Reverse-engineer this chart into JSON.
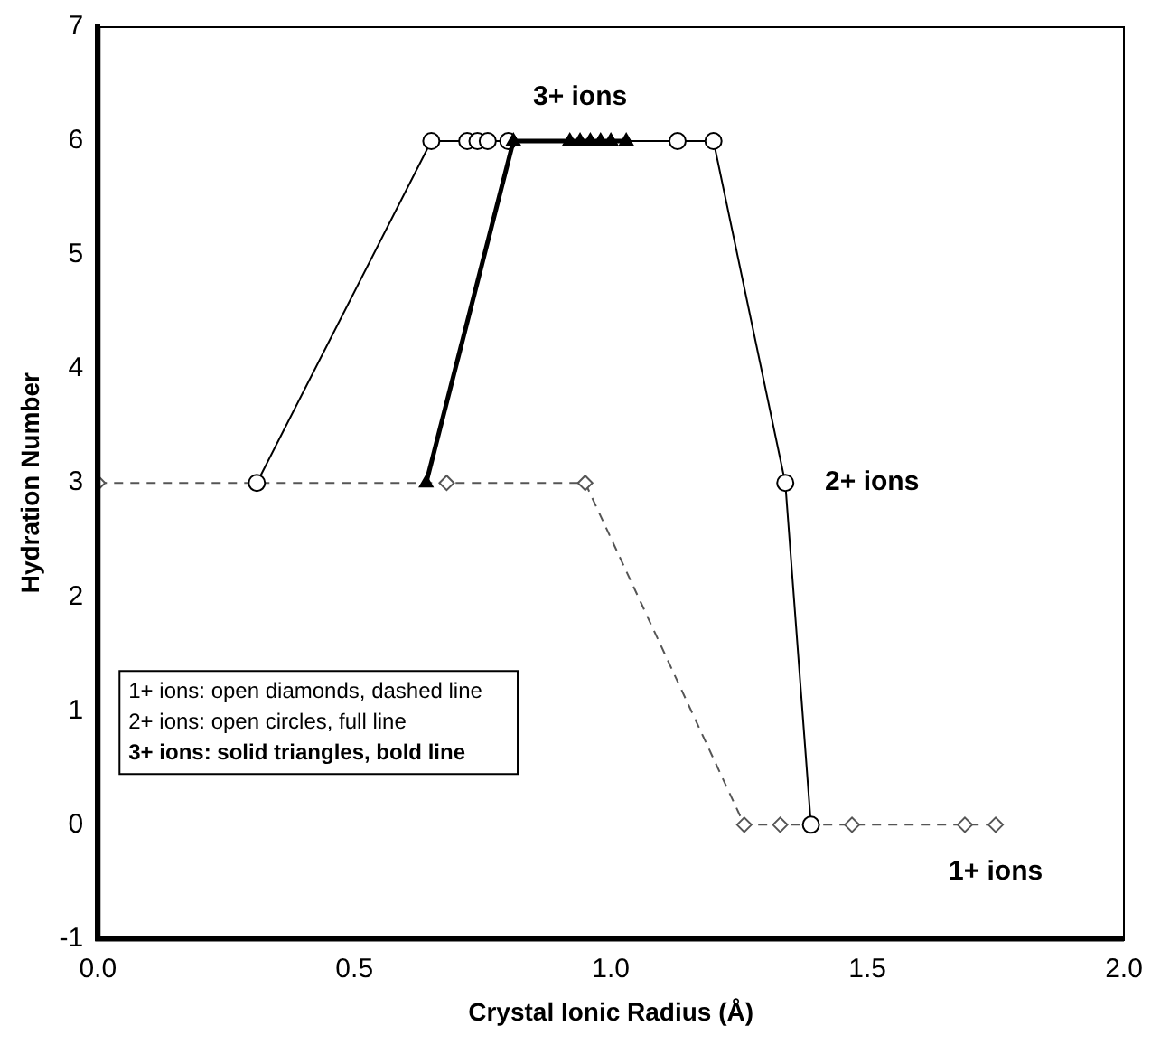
{
  "chart_data": {
    "type": "scatter",
    "xlabel": "Crystal Ionic Radius (Å)",
    "ylabel": "Hydration Number",
    "xlim": [
      0,
      2
    ],
    "xticks": [
      {
        "value": 0,
        "label": "0.0"
      },
      {
        "value": 0.5,
        "label": "0.5"
      },
      {
        "value": 1,
        "label": "1.0"
      },
      {
        "value": 1.5,
        "label": "1.5"
      },
      {
        "value": 2,
        "label": "2.0"
      }
    ],
    "ylim": [
      -1,
      7
    ],
    "yticks": [
      -1,
      0,
      1,
      2,
      3,
      4,
      5,
      6,
      7
    ],
    "grid": false,
    "legend": false,
    "series": [
      {
        "type": "line",
        "name": "1+ ions",
        "marker": "diamond",
        "line_style": "dashed",
        "color": "#555555",
        "x": [
          0,
          0.68,
          0.95,
          1.26,
          1.33,
          1.47,
          1.69,
          1.75
        ],
        "values": [
          3,
          3,
          3,
          0,
          0,
          0,
          0,
          0
        ]
      },
      {
        "type": "line",
        "name": "2+ ions",
        "marker": "circle",
        "line_style": "solid",
        "color": "#000000",
        "x": [
          0.31,
          0.65,
          0.72,
          0.74,
          0.76,
          0.8,
          1.13,
          1.2,
          1.34,
          1.39
        ],
        "values": [
          3,
          6,
          6,
          6,
          6,
          6,
          6,
          6,
          3,
          0
        ]
      },
      {
        "type": "line",
        "name": "3+ ions",
        "marker": "triangle",
        "line_style": "solid",
        "color": "#000000",
        "x": [
          0.64,
          0.81,
          0.92,
          0.94,
          0.96,
          0.98,
          1.0,
          1.03
        ],
        "values": [
          3,
          6,
          6,
          6,
          6,
          6,
          6,
          6
        ]
      }
    ],
    "annotations": [
      "1+ ions: open diamonds, dashed line",
      "2+ ions: open circles, full line",
      "3+ ions: solid triangles, bold line"
    ]
  }
}
